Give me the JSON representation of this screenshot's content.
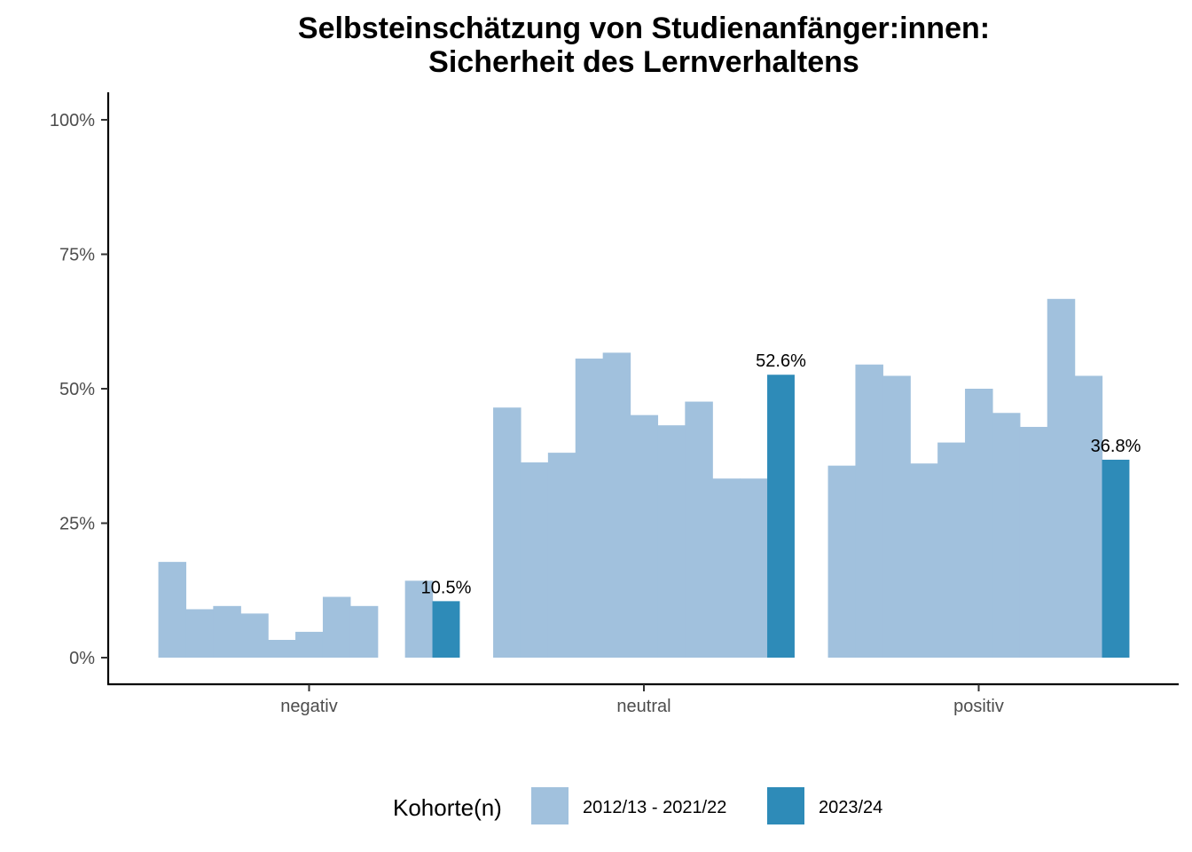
{
  "chart_data": {
    "type": "bar",
    "title_lines": [
      "Selbsteinschätzung von Studienanfänger:innen:",
      "Sicherheit des Lernverhaltens"
    ],
    "xlabel": "",
    "ylabel": "",
    "categories": [
      "negativ",
      "neutral",
      "positiv"
    ],
    "ylim": [
      0,
      1.0
    ],
    "y_ticks": [
      {
        "value": 0,
        "label": "0%"
      },
      {
        "value": 0.25,
        "label": "25%"
      },
      {
        "value": 0.5,
        "label": "50%"
      },
      {
        "value": 0.75,
        "label": "75%"
      },
      {
        "value": 1.0,
        "label": "100%"
      }
    ],
    "grid": false,
    "legend_position": "bottom",
    "legend_title": "Kohorte(n)",
    "series": [
      {
        "name": "2012/13 - 2021/22",
        "color": "#a1c1dd",
        "values": [
          [
            0.178,
            0.09,
            0.096,
            0.082,
            0.033,
            0.048,
            0.113,
            0.096,
            null,
            0.143
          ],
          [
            0.465,
            0.363,
            0.381,
            0.556,
            0.567,
            0.451,
            0.432,
            0.476,
            0.333,
            0.333
          ],
          [
            0.357,
            0.545,
            0.524,
            0.361,
            0.4,
            0.5,
            0.455,
            0.429,
            0.667,
            0.524
          ]
        ]
      },
      {
        "name": "2023/24",
        "color": "#2e8bb8",
        "values": [
          0.105,
          0.526,
          0.368
        ],
        "data_labels": [
          "10.5%",
          "52.6%",
          "36.8%"
        ]
      }
    ]
  }
}
